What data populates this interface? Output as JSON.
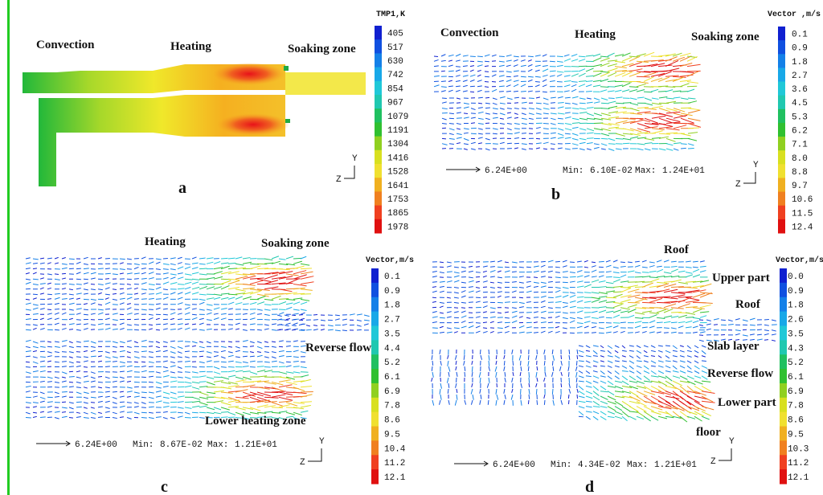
{
  "panels": [
    {
      "letter": "a",
      "annotations": [
        "Convection",
        "Heating",
        "Soaking zone"
      ],
      "legend_title": "TMP1,K",
      "legend_labels": [
        "405",
        "517",
        "630",
        "742",
        "854",
        "967",
        "1079",
        "1191",
        "1304",
        "1416",
        "1528",
        "1641",
        "1753",
        "1865",
        "1978"
      ],
      "axis_labels": [
        "Y",
        "Z"
      ]
    },
    {
      "letter": "b",
      "annotations": [
        "Convection",
        "Heating",
        "Soaking zone"
      ],
      "legend_title": "Vector ,m/s",
      "legend_labels": [
        "0.1",
        "0.9",
        "1.8",
        "2.7",
        "3.6",
        "4.5",
        "5.3",
        "6.2",
        "7.1",
        "8.0",
        "8.8",
        "9.7",
        "10.6",
        "11.5",
        "12.4"
      ],
      "reference": "6.24E+00",
      "min_label": "Min:",
      "min": "6.10E-02",
      "max_label": "Max:",
      "max": "1.24E+01",
      "axis_labels": [
        "Y",
        "Z"
      ]
    },
    {
      "letter": "c",
      "annotations": [
        "Heating",
        "Soaking zone",
        "Reverse flow",
        "Lower heating zone"
      ],
      "legend_title": "Vector,m/s",
      "legend_labels": [
        "0.1",
        "0.9",
        "1.8",
        "2.7",
        "3.5",
        "4.4",
        "5.2",
        "6.1",
        "6.9",
        "7.8",
        "8.6",
        "9.5",
        "10.4",
        "11.2",
        "12.1"
      ],
      "reference": "6.24E+00",
      "min_label": "Min:",
      "min": "8.67E-02",
      "max_label": "Max:",
      "max": "1.21E+01",
      "axis_labels": [
        "Y",
        "Z"
      ]
    },
    {
      "letter": "d",
      "annotations": [
        "Roof",
        "Upper part",
        "Roof",
        "Slab layer",
        "Reverse flow",
        "Lower part",
        "floor"
      ],
      "legend_title": "Vector,m/s",
      "legend_labels": [
        "0.0",
        "0.9",
        "1.8",
        "2.6",
        "3.5",
        "4.3",
        "5.2",
        "6.1",
        "6.9",
        "7.8",
        "8.6",
        "9.5",
        "10.3",
        "11.2",
        "12.1"
      ],
      "reference": "6.24E+00",
      "min_label": "Min:",
      "min": "4.34E-02",
      "max_label": "Max:",
      "max": "1.21E+01",
      "axis_labels": [
        "Y",
        "Z"
      ]
    }
  ]
}
